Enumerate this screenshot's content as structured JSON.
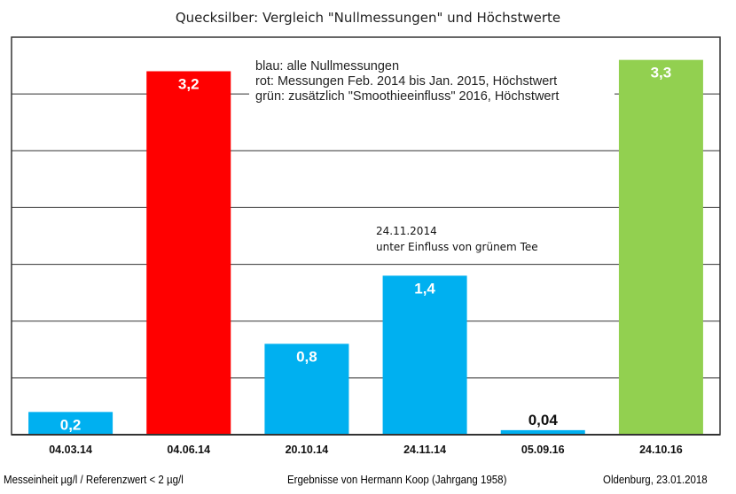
{
  "chart_data": {
    "type": "bar",
    "title": "Quecksilber: Vergleich \"Nullmessungen\" und Höchstwerte",
    "categories": [
      "04.03.14",
      "04.06.14",
      "20.10.14",
      "24.11.14",
      "05.09.16",
      "24.10.16"
    ],
    "values": [
      0.2,
      3.2,
      0.8,
      1.4,
      0.04,
      3.3
    ],
    "value_labels": [
      "0,2",
      "3,2",
      "0,8",
      "1,4",
      "0,04",
      "3,3"
    ],
    "bar_colors": [
      "#00b0f0",
      "#ff0000",
      "#00b0f0",
      "#00b0f0",
      "#00b0f0",
      "#92d050"
    ],
    "xlabel": "",
    "ylabel": "",
    "ylim": [
      0,
      3.5
    ],
    "grid_step": 0.5,
    "grid": true,
    "legend_lines": [
      "blau: alle Nullmessungen",
      "rot: Messungen Feb. 2014 bis Jan. 2015, Höchstwert",
      "grün: zusätzlich \"Smoothieeinfluss\" 2016, Höchstwert"
    ],
    "annotation": [
      "24.11.2014",
      "unter Einfluss von grünem Tee"
    ]
  },
  "footer": {
    "left": "Messeinheit µg/l / Referenzwert < 2 µg/l",
    "center": "Ergebnisse von Hermann Koop (Jahrgang 1958)",
    "right": "Oldenburg, 23.01.2018"
  }
}
